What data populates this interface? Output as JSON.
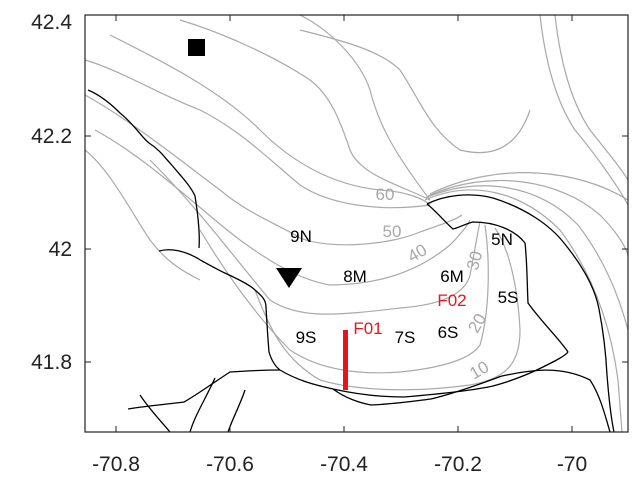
{
  "map": {
    "x_ticks": [
      "-70.8",
      "-70.6",
      "-70.4",
      "-70.2",
      "-70"
    ],
    "y_ticks": [
      "42.4",
      "42.2",
      "42",
      "41.8"
    ],
    "xlim": [
      -70.86,
      -69.9
    ],
    "ylim": [
      41.67,
      42.41
    ],
    "stations": [
      "9N",
      "8M",
      "6M",
      "5N",
      "5S",
      "6S",
      "7S",
      "9S"
    ],
    "moorings": [
      "F01",
      "F02"
    ],
    "contour_labels": [
      "60",
      "50",
      "40",
      "30",
      "20",
      "10"
    ],
    "markers": {
      "square": "square-marker",
      "triangle": "triangle-marker"
    },
    "colors": {
      "mooring": "#e8141c",
      "contour": "#a9a9a9",
      "coastline": "#000000"
    }
  }
}
